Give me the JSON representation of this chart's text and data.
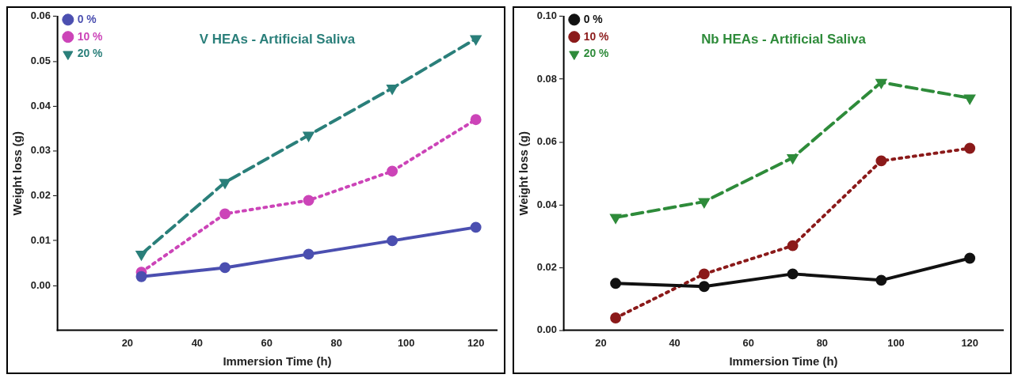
{
  "chart_data": [
    {
      "type": "line",
      "title": "V HEAs - Artificial Saliva",
      "xlabel": "Immersion Time (h)",
      "ylabel": "Weight loss (g)",
      "x": [
        24,
        48,
        72,
        96,
        120
      ],
      "xlim": [
        0,
        126
      ],
      "xticks": [
        20,
        40,
        60,
        80,
        100,
        120
      ],
      "ylim": [
        -0.01,
        0.06
      ],
      "yticks": [
        {
          "value": 0,
          "label": "0.00"
        },
        {
          "value": 0.01,
          "label": "0.01"
        },
        {
          "value": 0.02,
          "label": "0.02"
        },
        {
          "value": 0.03,
          "label": "0.03"
        },
        {
          "value": 0.04,
          "label": "0.04"
        },
        {
          "value": 0.05,
          "label": "0.05"
        },
        {
          "value": 0.06,
          "label": "0.06"
        }
      ],
      "grid": false,
      "legend": "top left",
      "series": [
        {
          "name": "0 %",
          "color": "#4b4fb0",
          "marker": "circle",
          "line_style": "solid",
          "values": [
            0.002,
            0.004,
            0.007,
            0.01,
            0.013
          ]
        },
        {
          "name": "10 %",
          "color": "#cc44b8",
          "marker": "circle",
          "line_style": "dotted",
          "values": [
            0.003,
            0.016,
            0.019,
            0.0255,
            0.037
          ]
        },
        {
          "name": "20 %",
          "color": "#2a7f7a",
          "marker": "triangle",
          "line_style": "dashed",
          "values": [
            0.007,
            0.023,
            0.0335,
            0.044,
            0.055
          ]
        }
      ]
    },
    {
      "type": "line",
      "title": "Nb HEAs - Artificial Saliva",
      "xlabel": "Immersion Time (h)",
      "ylabel": "Weight loss (g)",
      "x": [
        24,
        48,
        72,
        96,
        120
      ],
      "xlim": [
        10,
        129
      ],
      "xticks": [
        20,
        40,
        60,
        80,
        100,
        120
      ],
      "ylim": [
        0,
        0.1
      ],
      "yticks": [
        {
          "value": 0,
          "label": "0.00"
        },
        {
          "value": 0.02,
          "label": "0.02"
        },
        {
          "value": 0.04,
          "label": "0.04"
        },
        {
          "value": 0.06,
          "label": "0.06"
        },
        {
          "value": 0.08,
          "label": "0.08"
        },
        {
          "value": 0.1,
          "label": "0.10"
        }
      ],
      "grid": false,
      "legend": "top left",
      "series": [
        {
          "name": "0 %",
          "color": "#111111",
          "marker": "circle",
          "line_style": "solid",
          "values": [
            0.015,
            0.014,
            0.018,
            0.016,
            0.023
          ]
        },
        {
          "name": "10 %",
          "color": "#8b1a1a",
          "marker": "circle",
          "line_style": "dotted",
          "values": [
            0.004,
            0.018,
            0.027,
            0.054,
            0.058
          ]
        },
        {
          "name": "20 %",
          "color": "#2e8b3a",
          "marker": "triangle",
          "line_style": "dashed",
          "values": [
            0.036,
            0.041,
            0.055,
            0.079,
            0.074
          ]
        }
      ]
    }
  ]
}
